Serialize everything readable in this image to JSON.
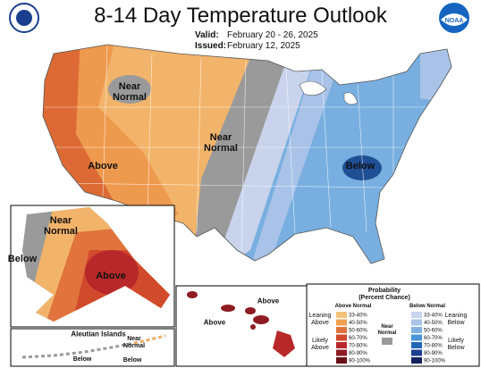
{
  "header": {
    "title": "8-14 Day Temperature Outlook",
    "valid_label": "Valid:",
    "valid": "February 20 - 26, 2025",
    "issued_label": "Issued:",
    "issued": "February 12, 2025",
    "logo": "NOAA"
  },
  "conus": {
    "labels": [
      "Near\nNormal",
      "Near\nNormal",
      "Above",
      "Below"
    ]
  },
  "alaska": {
    "labels": [
      "Near\nNormal",
      "Below",
      "Above"
    ]
  },
  "aleutian": {
    "title": "Aleutian Islands",
    "labels": [
      "Near\nNormal",
      "Below",
      "Below"
    ]
  },
  "hawaii": {
    "labels": [
      "Above",
      "Above"
    ]
  },
  "legend": {
    "title": "Probability\n(Percent Chance)",
    "above_title": "Above Normal",
    "below_title": "Below Normal",
    "near_label": "Near\nNormal",
    "near_color": "#9a9a9a",
    "leaning_above": "Leaning\nAbove",
    "likely_above": "Likely\nAbove",
    "leaning_below": "Leaning\nBelow",
    "likely_below": "Likely\nBelow",
    "above_bins": [
      {
        "label": "33-40%",
        "color": "#f5c27a"
      },
      {
        "label": "40-50%",
        "color": "#f0a050"
      },
      {
        "label": "50-60%",
        "color": "#e0743c"
      },
      {
        "label": "60-70%",
        "color": "#d24a2c"
      },
      {
        "label": "70-80%",
        "color": "#b8282a"
      },
      {
        "label": "80-90%",
        "color": "#8f1c22"
      },
      {
        "label": "90-100%",
        "color": "#6a1018"
      }
    ],
    "below_bins": [
      {
        "label": "33-40%",
        "color": "#c7d6ee"
      },
      {
        "label": "40-50%",
        "color": "#a9c3e8"
      },
      {
        "label": "50-60%",
        "color": "#7fb0e0"
      },
      {
        "label": "60-70%",
        "color": "#4a95d8"
      },
      {
        "label": "70-80%",
        "color": "#2266b8"
      },
      {
        "label": "80-90%",
        "color": "#1a3f8f"
      },
      {
        "label": "90-100%",
        "color": "#14235f"
      }
    ]
  }
}
